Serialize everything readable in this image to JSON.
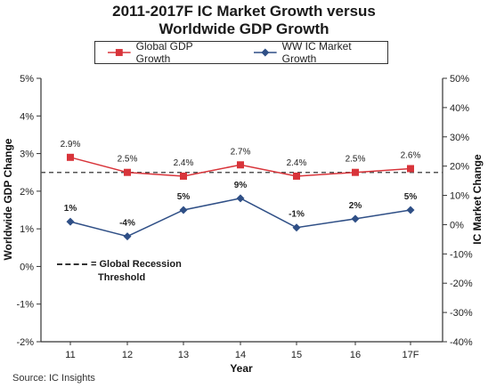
{
  "title_line1": "2011-2017F IC Market Growth versus",
  "title_line2": "Worldwide GDP Growth",
  "legend": {
    "gdp": "Global GDP Growth",
    "ic": "WW IC Market Growth"
  },
  "recession_note": {
    "line1": "= Global Recession",
    "line2": "Threshold"
  },
  "source": "Source: IC Insights",
  "colors": {
    "gdp": "#d8343a",
    "ic": "#2f4f86",
    "threshold": "#555555",
    "axis": "#333333"
  },
  "chart_data": {
    "type": "line",
    "title": "2011-2017F IC Market Growth versus Worldwide GDP Growth",
    "categories": [
      "11",
      "12",
      "13",
      "14",
      "15",
      "16",
      "17F"
    ],
    "xlabel": "Year",
    "ylabel_left": "Worldwide GDP Change",
    "ylabel_right": "IC Market Change",
    "ylim_left": [
      -2,
      5
    ],
    "ylim_right": [
      -40,
      50
    ],
    "yticks_left": [
      "5%",
      "4%",
      "3%",
      "2%",
      "1%",
      "0%",
      "-1%",
      "-2%"
    ],
    "yticks_right": [
      "50%",
      "40%",
      "30%",
      "20%",
      "10%",
      "0%",
      "-10%",
      "-20%",
      "-30%",
      "-40%"
    ],
    "threshold": 2.5,
    "series": [
      {
        "name": "Global GDP Growth",
        "axis": "left",
        "values": [
          2.9,
          2.5,
          2.4,
          2.7,
          2.4,
          2.5,
          2.6
        ],
        "labels": [
          "2.9%",
          "2.5%",
          "2.4%",
          "2.7%",
          "2.4%",
          "2.5%",
          "2.6%"
        ]
      },
      {
        "name": "WW IC Market Growth",
        "axis": "right",
        "values": [
          1,
          -4,
          5,
          9,
          -1,
          2,
          5
        ],
        "labels": [
          "1%",
          "-4%",
          "5%",
          "9%",
          "-1%",
          "2%",
          "5%"
        ]
      }
    ]
  }
}
